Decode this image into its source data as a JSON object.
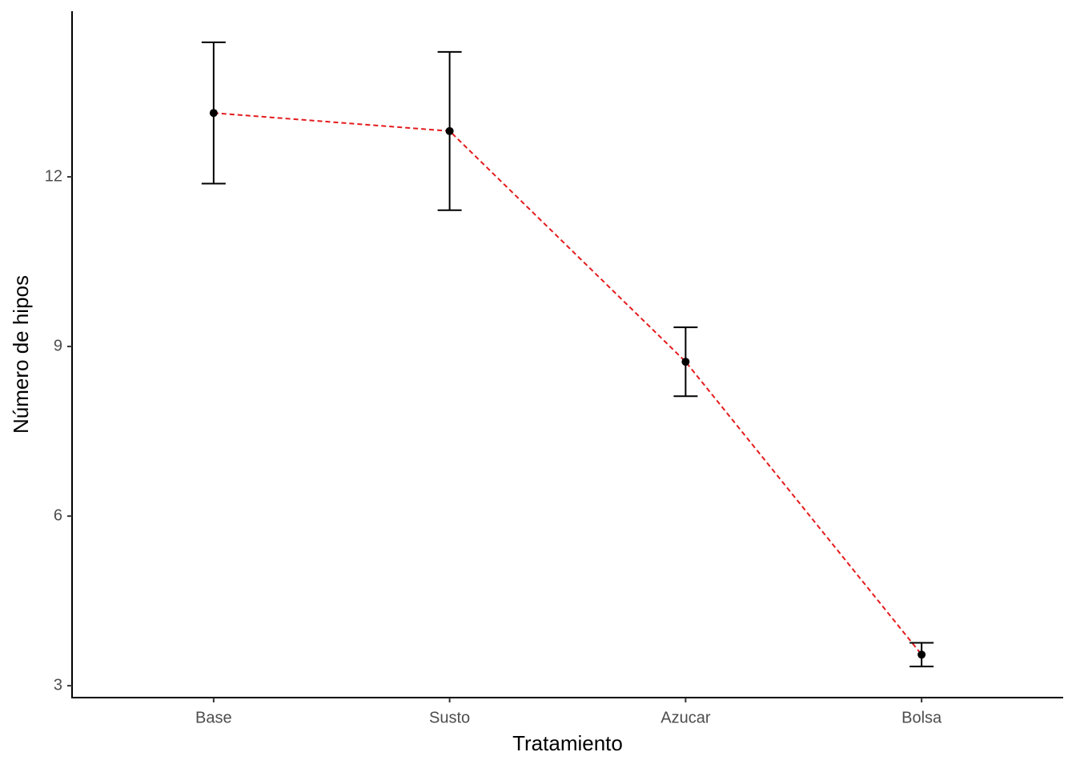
{
  "chart_data": {
    "type": "line",
    "x_label": "Tratamiento",
    "y_label": "Número de hipos",
    "categories": [
      "Base",
      "Susto",
      "Azucar",
      "Bolsa"
    ],
    "series": [
      {
        "name": "Número de hipos",
        "color": "#e41a1c",
        "point_color": "#000000",
        "values": [
          13.13,
          12.81,
          8.73,
          3.55
        ],
        "errors": [
          1.25,
          1.4,
          0.61,
          0.21
        ]
      }
    ],
    "ylim": [
      2.79,
      14.93
    ],
    "yticks": [
      3,
      6,
      9,
      12
    ]
  }
}
